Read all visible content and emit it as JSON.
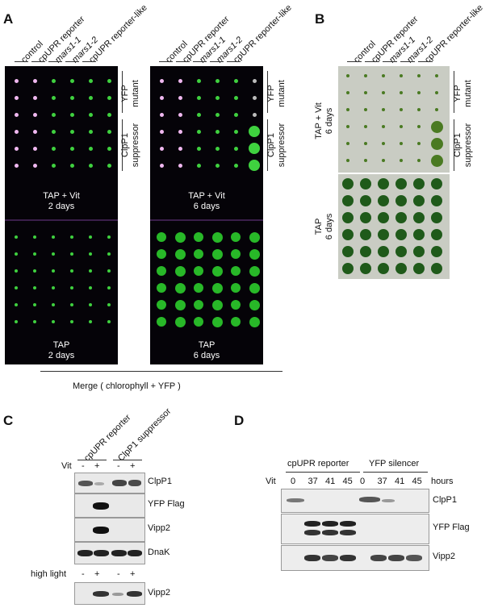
{
  "panel_a": {
    "letter": "A",
    "columns": [
      "control",
      "cpUPR reporter",
      "mars1-1",
      "mars1-2",
      "cpUPR reporter-like"
    ],
    "italic_columns": [
      false,
      false,
      true,
      true,
      false
    ],
    "plate_left_top": "TAP + Vit\n2 days",
    "plate_left_bottom": "TAP\n2 days",
    "plate_right_top": "TAP + Vit\n6 days",
    "plate_right_bottom": "TAP\n6 days",
    "group_yfp": "YFP\nmutant",
    "group_clpp1": "ClpP1\nsuppressor",
    "merge_caption": "Merge ( chlorophyll + YFP )"
  },
  "panel_b": {
    "letter": "B",
    "columns": [
      "control",
      "cpUPR reporter",
      "mars1-1",
      "mars1-2",
      "cpUPR reporter-like"
    ],
    "italic_columns": [
      false,
      false,
      true,
      true,
      false
    ],
    "label_top": "TAP + Vit\n6 days",
    "label_bottom": "TAP\n6 days",
    "group_yfp": "YFP\nmutant",
    "group_clpp1": "ClpP1\nsuppressor"
  },
  "panel_c": {
    "letter": "C",
    "columns": [
      "cpUPR reporter",
      "ClpP1 suppressor"
    ],
    "vit_label": "Vit",
    "vit_signs": [
      "-",
      "+",
      "-",
      "+"
    ],
    "high_light_label": "high light",
    "high_light_signs": [
      "-",
      "+",
      "-",
      "+"
    ],
    "blots": [
      "ClpP1",
      "YFP Flag",
      "Vipp2",
      "DnaK"
    ],
    "bottom_blot": "Vipp2"
  },
  "panel_d": {
    "letter": "D",
    "groups": [
      "cpUPR reporter",
      "YFP silencer"
    ],
    "vit_label": "Vit",
    "times": [
      "0",
      "37",
      "41",
      "45",
      "0",
      "37",
      "41",
      "45"
    ],
    "hours_label": "hours",
    "blots": [
      "ClpP1",
      "YFP Flag",
      "Vipp2"
    ]
  }
}
